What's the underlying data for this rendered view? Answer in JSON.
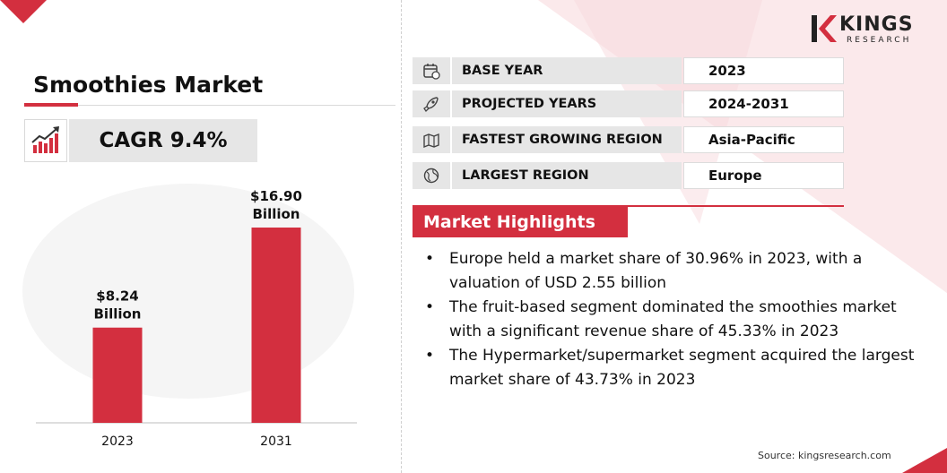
{
  "title": "Smoothies Market",
  "cagr": "CAGR 9.4%",
  "brand": {
    "name": "KINGS",
    "sub": "RESEARCH",
    "accent": "#d32f3f"
  },
  "info_rows": [
    {
      "icon": "calendar-icon",
      "label": "BASE YEAR",
      "value": "2023"
    },
    {
      "icon": "rocket-icon",
      "label": "PROJECTED YEARS",
      "value": "2024-2031"
    },
    {
      "icon": "map-icon",
      "label": "FASTEST GROWING REGION",
      "value": "Asia-Pacific"
    },
    {
      "icon": "globe-icon",
      "label": "LARGEST REGION",
      "value": "Europe"
    }
  ],
  "highlights": {
    "heading": "Market Highlights",
    "items": [
      "Europe held a market share of 30.96% in 2023, with a valuation of USD 2.55 billion",
      "The fruit-based segment dominated the smoothies market with a significant revenue share of 45.33% in 2023",
      "The Hypermarket/supermarket segment acquired the largest market share of 43.73% in 2023"
    ]
  },
  "source": "Source: kingsresearch.com",
  "chart_data": {
    "type": "bar",
    "categories": [
      "2023",
      "2031"
    ],
    "values": [
      8.24,
      16.9
    ],
    "value_labels": [
      [
        "$8.24",
        "Billion"
      ],
      [
        "$16.90",
        "Billion"
      ]
    ],
    "ylim": [
      0,
      16.9
    ],
    "bar_color": "#d32f3f",
    "grid": false
  }
}
